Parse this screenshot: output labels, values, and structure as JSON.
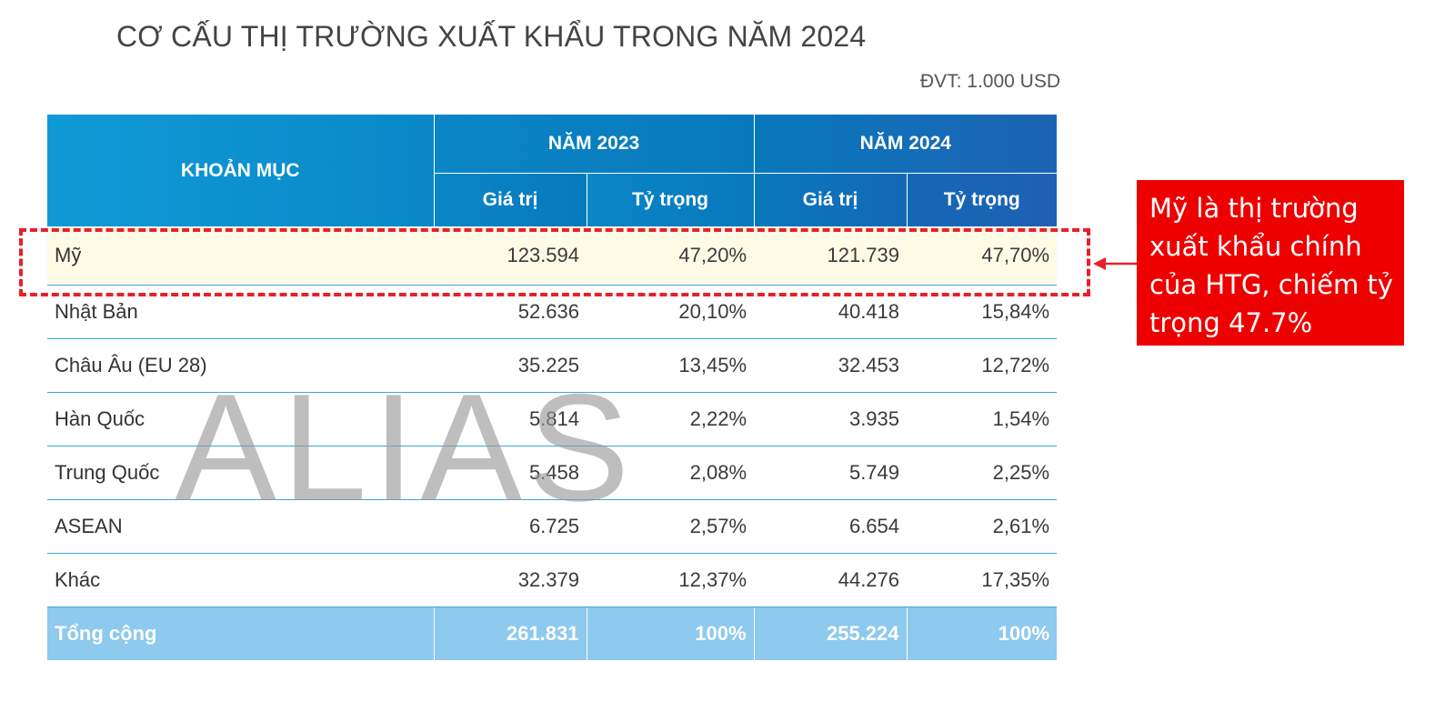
{
  "title": "CƠ CẤU THỊ TRƯỜNG XUẤT KHẨU TRONG NĂM 2024",
  "unit": "ĐVT: 1.000 USD",
  "table": {
    "header": {
      "item": "KHOẢN MỤC",
      "year_2023": "NĂM 2023",
      "year_2024": "NĂM 2024",
      "value": "Giá trị",
      "share": "Tỷ trọng"
    },
    "rows": [
      {
        "name": "Mỹ",
        "v2023": "123.594",
        "s2023": "47,20%",
        "v2024": "121.739",
        "s2024": "47,70%"
      },
      {
        "name": "Nhật Bản",
        "v2023": "52.636",
        "s2023": "20,10%",
        "v2024": "40.418",
        "s2024": "15,84%"
      },
      {
        "name": "Châu Âu (EU 28)",
        "v2023": "35.225",
        "s2023": "13,45%",
        "v2024": "32.453",
        "s2024": "12,72%"
      },
      {
        "name": "Hàn Quốc",
        "v2023": "5.814",
        "s2023": "2,22%",
        "v2024": "3.935",
        "s2024": "1,54%"
      },
      {
        "name": "Trung Quốc",
        "v2023": "5.458",
        "s2023": "2,08%",
        "v2024": "5.749",
        "s2024": "2,25%"
      },
      {
        "name": "ASEAN",
        "v2023": "6.725",
        "s2023": "2,57%",
        "v2024": "6.654",
        "s2024": "2,61%"
      },
      {
        "name": "Khác",
        "v2023": "32.379",
        "s2023": "12,37%",
        "v2024": "44.276",
        "s2024": "17,35%"
      }
    ],
    "total": {
      "name": "Tổng cộng",
      "v2023": "261.831",
      "s2023": "100%",
      "v2024": "255.224",
      "s2024": "100%"
    }
  },
  "watermark": "ALIAS",
  "callout": {
    "text": "Mỹ là thị trường xuất khẩu chính của HTG, chiếm tỷ trọng 47.7%"
  },
  "colors": {
    "header_blue": "#0a88c8",
    "total_row": "#8ec9ee",
    "highlight_row": "#fdfbe6",
    "callout_red": "#ee0000",
    "dash_red": "#e8202a"
  }
}
